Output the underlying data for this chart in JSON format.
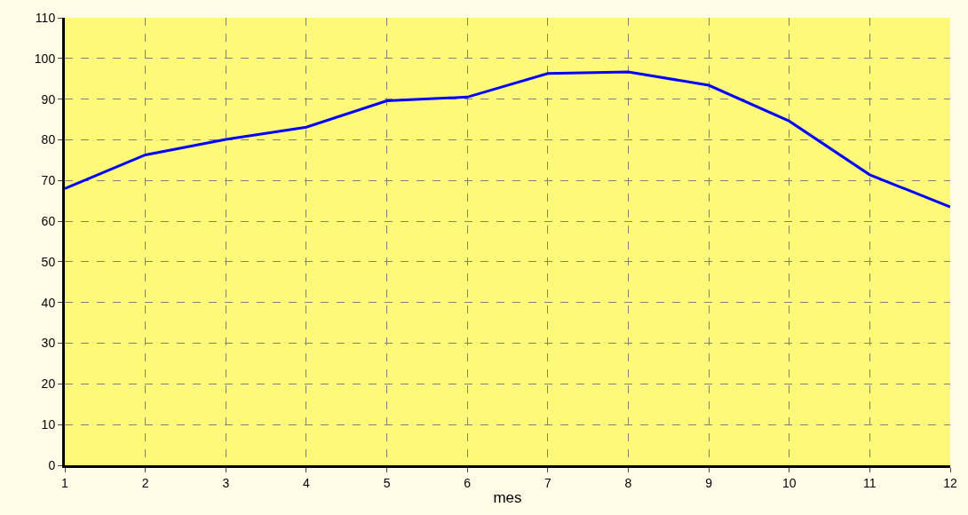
{
  "chart_data": {
    "type": "line",
    "xlabel": "mes",
    "x": [
      1,
      2,
      3,
      4,
      5,
      6,
      7,
      8,
      9,
      10,
      11,
      12
    ],
    "series": [
      {
        "color": "#0000ff",
        "values": [
          68,
          76.3,
          80.1,
          83.1,
          89.6,
          90.5,
          96.3,
          96.7,
          93.4,
          84.6,
          71.4,
          63.5
        ]
      }
    ],
    "xlim": [
      1,
      12
    ],
    "xticks": [
      1,
      2,
      3,
      4,
      5,
      6,
      7,
      8,
      9,
      10,
      11,
      12
    ],
    "ylim": [
      0,
      110
    ],
    "yticks": [
      0,
      10,
      20,
      30,
      40,
      50,
      60,
      70,
      80,
      90,
      100,
      110
    ],
    "grid": true,
    "marker": "none",
    "line_style": "solid"
  }
}
